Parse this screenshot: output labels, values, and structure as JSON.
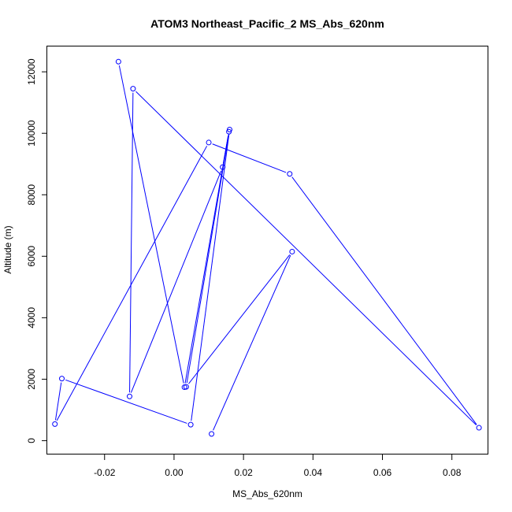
{
  "chart_data": {
    "type": "line",
    "title": "ATOM3 Northeast_Pacific_2 MS_Abs_620nm",
    "xlabel": "MS_Abs_620nm",
    "ylabel": "Altitude (m)",
    "xlim": [
      -0.0365,
      0.0905
    ],
    "ylim": [
      -450,
      12850
    ],
    "x_ticks": [
      -0.02,
      0.0,
      0.02,
      0.04,
      0.06,
      0.08
    ],
    "x_tick_labels": [
      "-0.02",
      "0.00",
      "0.02",
      "0.04",
      "0.06",
      "0.08"
    ],
    "y_ticks": [
      0,
      2000,
      4000,
      6000,
      8000,
      10000,
      12000
    ],
    "y_tick_labels": [
      "0",
      "2000",
      "4000",
      "6000",
      "8000",
      "10000",
      "12000"
    ],
    "grid": false,
    "series": [
      {
        "color": "#0000ff",
        "marker": "open-circle",
        "points": [
          {
            "x": 0.0108,
            "y": 220
          },
          {
            "x": 0.034,
            "y": 6150
          },
          {
            "x": 0.0035,
            "y": 1750
          },
          {
            "x": 0.016,
            "y": 10120
          },
          {
            "x": 0.0048,
            "y": 520
          },
          {
            "x": -0.0323,
            "y": 2020
          },
          {
            "x": -0.0343,
            "y": 540
          },
          {
            "x": 0.01,
            "y": 9700
          },
          {
            "x": 0.0333,
            "y": 8680
          },
          {
            "x": 0.0878,
            "y": 420
          },
          {
            "x": -0.0118,
            "y": 11450
          },
          {
            "x": -0.0128,
            "y": 1440
          },
          {
            "x": 0.014,
            "y": 8900
          },
          {
            "x": 0.0158,
            "y": 10050
          },
          {
            "x": 0.003,
            "y": 1740
          },
          {
            "x": -0.016,
            "y": 12330
          }
        ]
      }
    ]
  }
}
